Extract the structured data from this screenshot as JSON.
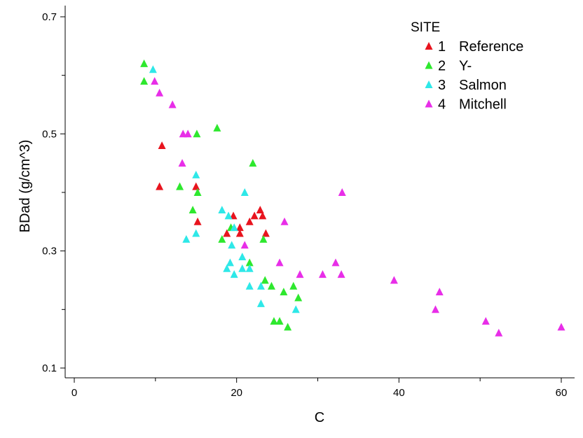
{
  "chart_data": {
    "type": "scatter",
    "xlabel": "C",
    "ylabel": "BDad  (g/cm^3)",
    "xlim": [
      0,
      61
    ],
    "ylim": [
      0.1,
      0.7
    ],
    "x_ticks": [
      0,
      20,
      40,
      60
    ],
    "y_ticks": [
      0.1,
      0.3,
      0.5,
      0.7
    ],
    "grid": false,
    "marker": "triangle",
    "legend": {
      "title": "SITE",
      "placement": "top-right",
      "entries": [
        {
          "code": "1",
          "label": "Reference",
          "color": "#e8141e"
        },
        {
          "code": "2",
          "label": "Y-",
          "color": "#2ee82e"
        },
        {
          "code": "3",
          "label": "Salmon",
          "color": "#2ee8e8"
        },
        {
          "code": "4",
          "label": "Mitchell",
          "color": "#e82ee8"
        }
      ]
    },
    "series": [
      {
        "name": "1 Reference",
        "color": "#e8141e",
        "points": [
          [
            10.8,
            0.48
          ],
          [
            10.5,
            0.41
          ],
          [
            15.0,
            0.41
          ],
          [
            15.2,
            0.35
          ],
          [
            18.8,
            0.33
          ],
          [
            19.6,
            0.36
          ],
          [
            20.4,
            0.34
          ],
          [
            20.4,
            0.33
          ],
          [
            21.6,
            0.35
          ],
          [
            22.2,
            0.36
          ],
          [
            22.9,
            0.37
          ],
          [
            23.2,
            0.36
          ],
          [
            23.6,
            0.33
          ]
        ]
      },
      {
        "name": "2 Y-",
        "color": "#2ee82e",
        "points": [
          [
            8.6,
            0.62
          ],
          [
            8.6,
            0.59
          ],
          [
            15.1,
            0.5
          ],
          [
            17.6,
            0.51
          ],
          [
            22.0,
            0.45
          ],
          [
            13.0,
            0.41
          ],
          [
            15.2,
            0.4
          ],
          [
            14.6,
            0.37
          ],
          [
            19.3,
            0.34
          ],
          [
            18.2,
            0.32
          ],
          [
            23.3,
            0.32
          ],
          [
            21.6,
            0.28
          ],
          [
            23.5,
            0.25
          ],
          [
            24.3,
            0.24
          ],
          [
            25.8,
            0.23
          ],
          [
            27.0,
            0.24
          ],
          [
            27.6,
            0.22
          ],
          [
            24.6,
            0.18
          ],
          [
            25.3,
            0.18
          ],
          [
            26.3,
            0.17
          ]
        ]
      },
      {
        "name": "3 Salmon",
        "color": "#2ee8e8",
        "points": [
          [
            9.7,
            0.61
          ],
          [
            15.0,
            0.43
          ],
          [
            21.0,
            0.4
          ],
          [
            18.2,
            0.37
          ],
          [
            19.0,
            0.36
          ],
          [
            19.7,
            0.34
          ],
          [
            15.0,
            0.33
          ],
          [
            13.8,
            0.32
          ],
          [
            19.4,
            0.31
          ],
          [
            20.7,
            0.29
          ],
          [
            19.2,
            0.28
          ],
          [
            18.8,
            0.27
          ],
          [
            20.7,
            0.27
          ],
          [
            21.6,
            0.27
          ],
          [
            19.7,
            0.26
          ],
          [
            21.6,
            0.24
          ],
          [
            23.0,
            0.24
          ],
          [
            23.0,
            0.21
          ],
          [
            27.3,
            0.2
          ]
        ]
      },
      {
        "name": "4 Mitchell",
        "color": "#e82ee8",
        "points": [
          [
            9.9,
            0.59
          ],
          [
            10.5,
            0.57
          ],
          [
            12.1,
            0.55
          ],
          [
            13.4,
            0.5
          ],
          [
            14.0,
            0.5
          ],
          [
            13.3,
            0.45
          ],
          [
            33.0,
            0.4
          ],
          [
            25.9,
            0.35
          ],
          [
            21.0,
            0.31
          ],
          [
            25.3,
            0.28
          ],
          [
            32.2,
            0.28
          ],
          [
            27.8,
            0.26
          ],
          [
            30.6,
            0.26
          ],
          [
            32.9,
            0.26
          ],
          [
            39.4,
            0.25
          ],
          [
            45.0,
            0.23
          ],
          [
            44.5,
            0.2
          ],
          [
            50.7,
            0.18
          ],
          [
            52.3,
            0.16
          ],
          [
            60.0,
            0.17
          ]
        ]
      }
    ]
  }
}
